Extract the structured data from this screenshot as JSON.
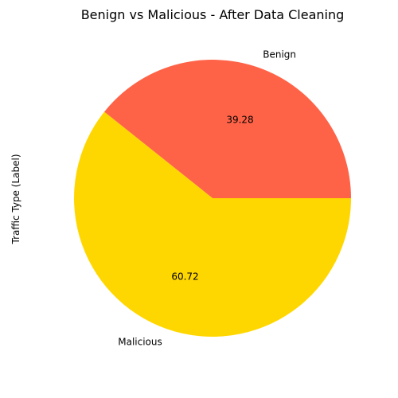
{
  "chart_data": {
    "type": "pie",
    "title": "Benign vs Malicious - After Data Cleaning",
    "ylabel": "Traffic Type (Label)",
    "xlabel": "",
    "labels": [
      "Benign",
      "Malicious"
    ],
    "values": [
      39.28,
      60.72
    ],
    "value_labels": [
      "39.28",
      "60.72"
    ],
    "colors": [
      "#FF6347",
      "#FFD700"
    ],
    "start_angle_deg": 0,
    "direction": "counterclockwise",
    "legend": "none",
    "grid": false
  }
}
